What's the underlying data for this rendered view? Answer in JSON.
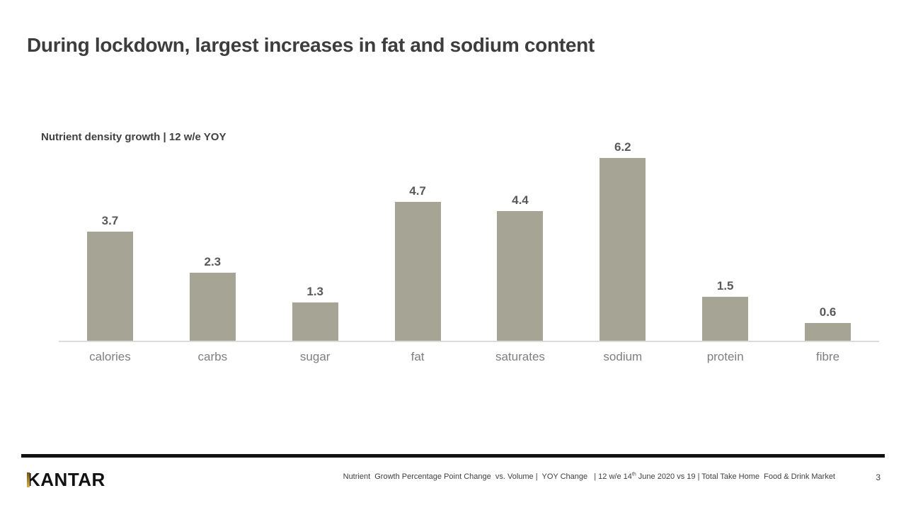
{
  "slide": {
    "title": "During lockdown, largest increases in fat and sodium content",
    "page_number": "3"
  },
  "chart_data": {
    "type": "bar",
    "title": "Nutrient density growth | 12 w/e YOY",
    "categories": [
      "calories",
      "carbs",
      "sugar",
      "fat",
      "saturates",
      "sodium",
      "protein",
      "fibre"
    ],
    "values": [
      3.7,
      2.3,
      1.3,
      4.7,
      4.4,
      6.2,
      1.5,
      0.6
    ],
    "data_labels": [
      "3.7",
      "2.3",
      "1.3",
      "4.7",
      "4.4",
      "6.2",
      "1.5",
      "0.6"
    ],
    "xlabel": "",
    "ylabel": "",
    "ylim": [
      0,
      6.2
    ],
    "grid": false,
    "legend": false,
    "bar_color": "#a6a494",
    "value_label_color": "#595959",
    "category_label_color": "#7f7f7f",
    "baseline_color": "#dcdcdc"
  },
  "footer": {
    "rule_color": "#121212",
    "logo_text": "KANTAR",
    "logo_gold_color": "#c9a227",
    "source_part1": "Nutrient  Growth Percentage Point Change  vs. Volume |  YOY Change   | 12 w/e 14",
    "source_sup": "th",
    "source_part2": " June 2020 vs 19 | Total Take Home  Food & Drink Market"
  }
}
